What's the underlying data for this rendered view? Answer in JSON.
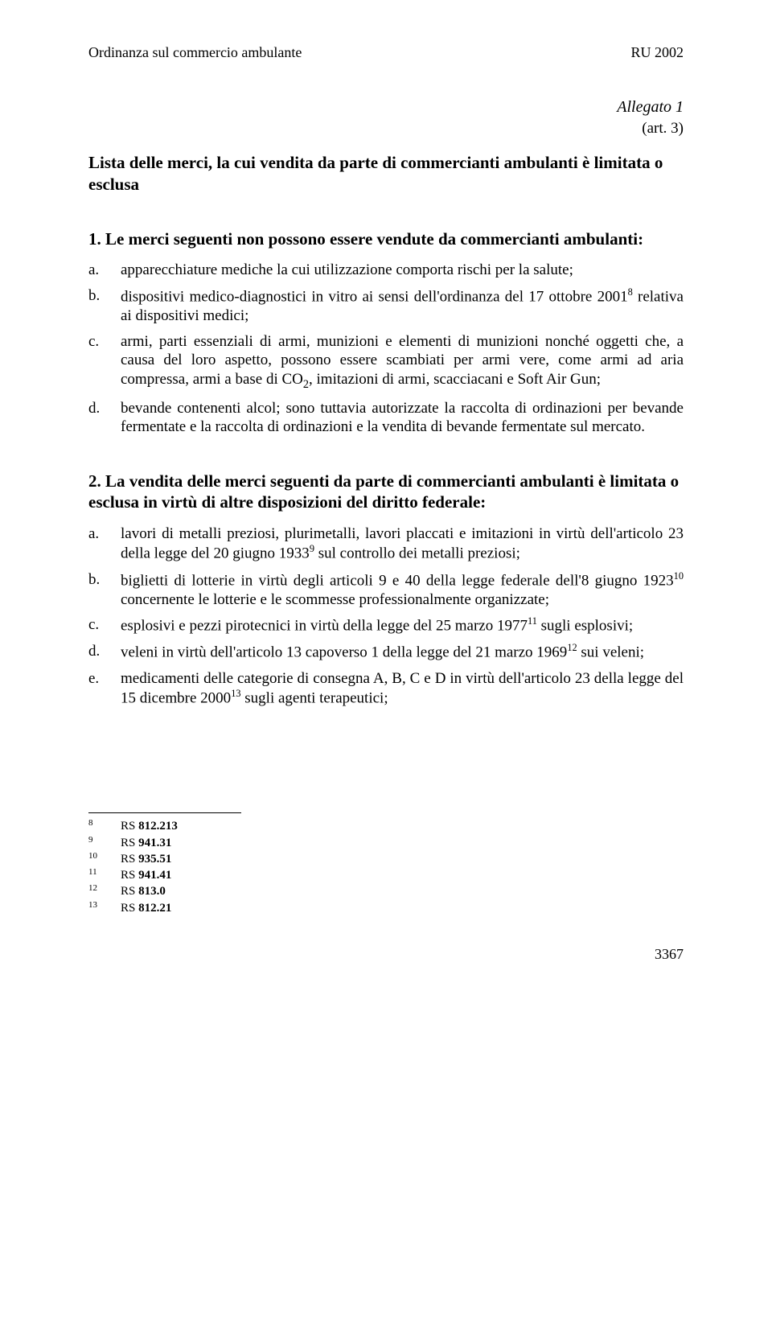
{
  "header": {
    "left": "Ordinanza sul commercio ambulante",
    "right": "RU 2002"
  },
  "allegato": "Allegato 1",
  "art_ref": "(art. 3)",
  "main_title": "Lista delle merci, la cui vendita da parte di commercianti ambulanti è limitata o esclusa",
  "section1": {
    "title": "1. Le merci seguenti non possono essere vendute da commercianti ambulanti:",
    "items": [
      {
        "label": "a.",
        "text": "apparecchiature mediche la cui utilizzazione comporta rischi per la salute;"
      },
      {
        "label": "b.",
        "text": "dispositivi medico-diagnostici in vitro ai sensi dell'ordinanza del 17 ottobre 2001",
        "sup": "8",
        "text2": " relativa ai dispositivi medici;"
      },
      {
        "label": "c.",
        "text": "armi, parti essenziali di armi, munizioni e elementi di munizioni nonché oggetti che, a causa del loro aspetto, possono essere scambiati per armi vere, come armi ad aria compressa, armi a base di CO",
        "sub": "2",
        "text2": ", imitazioni di armi, scacciacani e Soft Air Gun;"
      },
      {
        "label": "d.",
        "text": "bevande contenenti alcol; sono tuttavia autorizzate la raccolta di ordinazioni per bevande fermentate e la raccolta di ordinazioni e la vendita di bevande fermentate sul mercato."
      }
    ]
  },
  "section2": {
    "title": "2. La vendita delle merci seguenti da parte di commercianti ambulanti è limitata o esclusa in virtù di altre disposizioni del diritto federale:",
    "items": [
      {
        "label": "a.",
        "text": "lavori di metalli preziosi, plurimetalli, lavori placcati e imitazioni in virtù dell'articolo 23 della legge del 20 giugno 1933",
        "sup": "9",
        "text2": " sul controllo dei metalli preziosi;"
      },
      {
        "label": "b.",
        "text": "biglietti di lotterie in virtù degli articoli 9 e 40 della legge federale dell'8 giugno 1923",
        "sup": "10",
        "text2": " concernente le lotterie e le scommesse professionalmente organizzate;"
      },
      {
        "label": "c.",
        "text": "esplosivi e pezzi pirotecnici in virtù della legge del 25 marzo 1977",
        "sup": "11",
        "text2": " sugli esplosivi;"
      },
      {
        "label": "d.",
        "text": "veleni in virtù dell'articolo 13 capoverso 1 della legge del 21 marzo 1969",
        "sup": "12",
        "text2": " sui veleni;"
      },
      {
        "label": "e.",
        "text": "medicamenti delle categorie di consegna A, B, C e D in virtù dell'articolo 23 della legge del 15 dicembre 2000",
        "sup": "13",
        "text2": " sugli agenti terapeutici;"
      }
    ]
  },
  "footnotes": [
    {
      "num": "8",
      "text": "RS 812.213"
    },
    {
      "num": "9",
      "text": "RS 941.31"
    },
    {
      "num": "10",
      "text": "RS 935.51"
    },
    {
      "num": "11",
      "text": "RS 941.41"
    },
    {
      "num": "12",
      "text": "RS 813.0"
    },
    {
      "num": "13",
      "text": "RS 812.21"
    }
  ],
  "page_number": "3367"
}
